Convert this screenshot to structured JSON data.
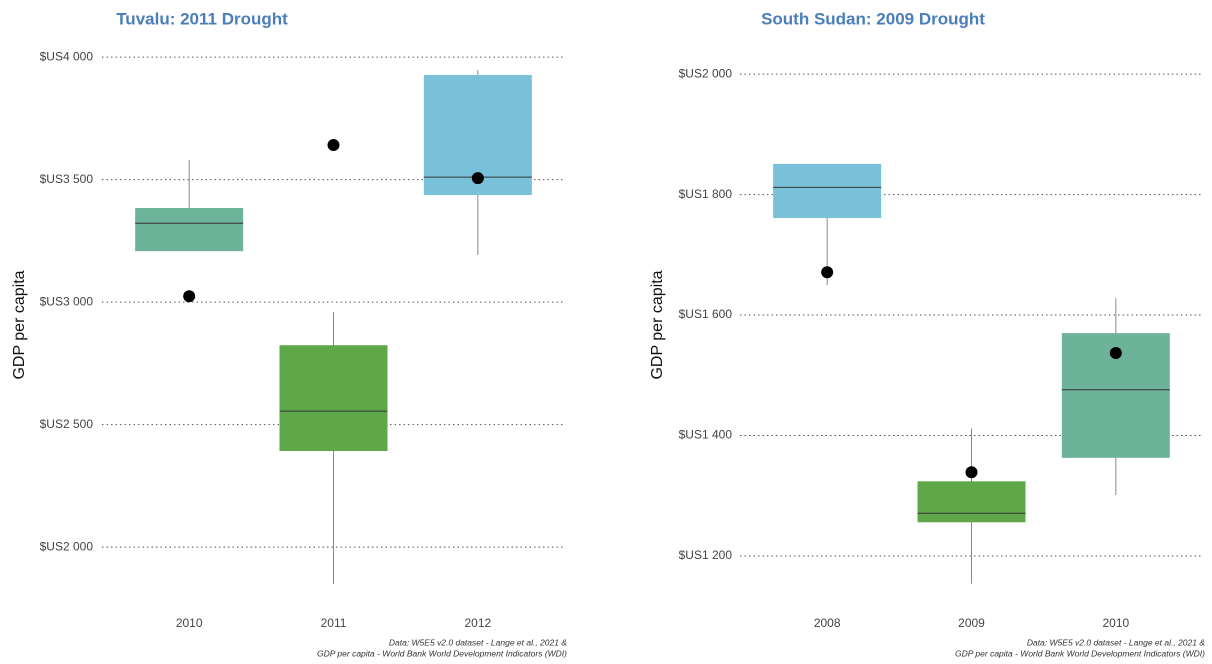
{
  "chart_data": [
    {
      "type": "box",
      "title": "Tuvalu: 2011 Drought",
      "y_label": "GDP per capita",
      "categories": [
        "2010",
        "2011",
        "2012"
      ],
      "boxes": [
        {
          "whisker_low": 3208,
          "q1": 3208,
          "median": 3322,
          "q3": 3384,
          "whisker_high": 3580,
          "color": "#6db399"
        },
        {
          "whisker_low": 1849,
          "q1": 2392,
          "median": 2555,
          "q3": 2824,
          "whisker_high": 2959,
          "color": "#5fa84a"
        },
        {
          "whisker_low": 3192,
          "q1": 3437,
          "median": 3510,
          "q3": 3927,
          "whisker_high": 3947,
          "color": "#79c1d8"
        }
      ],
      "points": [
        3024,
        3641,
        3506
      ],
      "ylim": [
        1784,
        4029
      ],
      "yticks": [
        {
          "value": 2000,
          "label": "$US2 000"
        },
        {
          "value": 2500,
          "label": "$US2 500"
        },
        {
          "value": 3000,
          "label": "$US3 000"
        },
        {
          "value": 3500,
          "label": "$US3 500"
        },
        {
          "value": 4000,
          "label": "$US4 000"
        }
      ],
      "grid": true,
      "source": [
        "Data: W5E5 v2.0 dataset - Lange et al., 2021 &",
        "GDP per capita - World Bank World Development Indicators (WDI)"
      ]
    },
    {
      "type": "box",
      "title": "South Sudan: 2009 Drought",
      "y_label": "GDP per capita",
      "categories": [
        "2008",
        "2009",
        "2010"
      ],
      "boxes": [
        {
          "whisker_low": 1650,
          "q1": 1761,
          "median": 1812,
          "q3": 1851,
          "whisker_high": 1851,
          "color": "#79c1d8"
        },
        {
          "whisker_low": 1154,
          "q1": 1256,
          "median": 1271,
          "q3": 1324,
          "whisker_high": 1412,
          "color": "#5fa84a"
        },
        {
          "whisker_low": 1301,
          "q1": 1363,
          "median": 1476,
          "q3": 1570,
          "whisker_high": 1628,
          "color": "#6db399"
        }
      ],
      "points": [
        1671,
        1339,
        1537
      ],
      "ylim": [
        1127,
        2040
      ],
      "yticks": [
        {
          "value": 1200,
          "label": "$US1 200"
        },
        {
          "value": 1400,
          "label": "$US1 400"
        },
        {
          "value": 1600,
          "label": "$US1 600"
        },
        {
          "value": 1800,
          "label": "$US1 800"
        },
        {
          "value": 2000,
          "label": "$US2 000"
        }
      ],
      "grid": true,
      "source": [
        "Data: W5E5 v2.0 dataset - Lange et al., 2021 &",
        "GDP per capita - World Bank World Development Indicators (WDI)"
      ]
    }
  ]
}
